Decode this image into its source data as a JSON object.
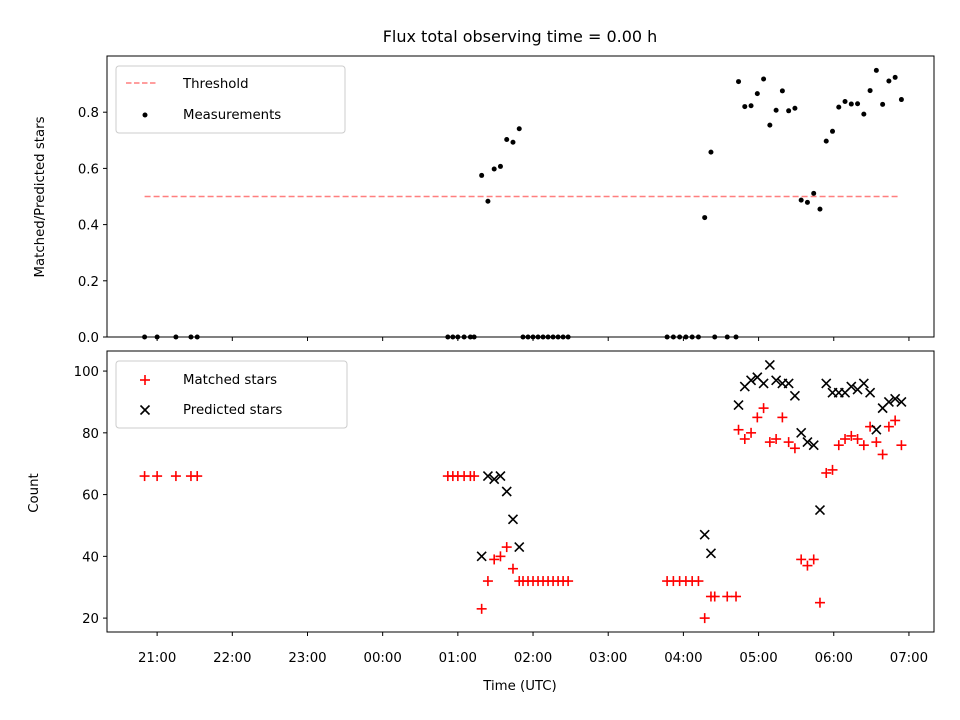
{
  "chart_data": [
    {
      "type": "scatter",
      "title": "Flux total observing time = 0.00 h",
      "xlabel": "",
      "ylabel": "Matched/Predicted stars",
      "xlim": [
        "20:20",
        "07:20"
      ],
      "ylim": [
        0,
        1.0
      ],
      "yticks": [
        "0.0",
        "0.2",
        "0.4",
        "0.6",
        "0.8"
      ],
      "ytick_values": [
        0,
        0.2,
        0.4,
        0.6,
        0.8
      ],
      "grid": false,
      "legend_placement": "top-left",
      "threshold": {
        "name": "Threshold",
        "color": "#ff7f7f",
        "style": "dashed",
        "y": 0.5,
        "x": [
          "20:50",
          "06:52"
        ]
      },
      "series": [
        {
          "name": "Measurements",
          "color": "#000000",
          "marker": "dot",
          "points": [
            [
              "20:50",
              0.0
            ],
            [
              "21:00",
              0.0
            ],
            [
              "21:15",
              0.0
            ],
            [
              "21:27",
              0.0
            ],
            [
              "21:32",
              0.0
            ],
            [
              "00:52",
              0.0
            ],
            [
              "00:56",
              0.0
            ],
            [
              "01:00",
              0.0
            ],
            [
              "01:05",
              0.0
            ],
            [
              "01:10",
              0.0
            ],
            [
              "01:13",
              0.0
            ],
            [
              "01:19",
              0.575
            ],
            [
              "01:24",
              0.483
            ],
            [
              "01:29",
              0.598
            ],
            [
              "01:34",
              0.607
            ],
            [
              "01:39",
              0.703
            ],
            [
              "01:44",
              0.693
            ],
            [
              "01:49",
              0.741
            ],
            [
              "01:52",
              0.0
            ],
            [
              "01:56",
              0.0
            ],
            [
              "02:00",
              0.0
            ],
            [
              "02:04",
              0.0
            ],
            [
              "02:08",
              0.0
            ],
            [
              "02:12",
              0.0
            ],
            [
              "02:16",
              0.0
            ],
            [
              "02:20",
              0.0
            ],
            [
              "02:24",
              0.0
            ],
            [
              "02:28",
              0.0
            ],
            [
              "03:47",
              0.0
            ],
            [
              "03:52",
              0.0
            ],
            [
              "03:57",
              0.0
            ],
            [
              "04:02",
              0.0
            ],
            [
              "04:07",
              0.0
            ],
            [
              "04:12",
              0.0
            ],
            [
              "04:17",
              0.425
            ],
            [
              "04:22",
              0.658
            ],
            [
              "04:25",
              0.0
            ],
            [
              "04:35",
              0.0
            ],
            [
              "04:42",
              0.0
            ],
            [
              "04:44",
              0.909
            ],
            [
              "04:49",
              0.82
            ],
            [
              "04:54",
              0.823
            ],
            [
              "04:59",
              0.866
            ],
            [
              "05:04",
              0.918
            ],
            [
              "05:09",
              0.754
            ],
            [
              "05:14",
              0.807
            ],
            [
              "05:19",
              0.876
            ],
            [
              "05:24",
              0.805
            ],
            [
              "05:29",
              0.814
            ],
            [
              "05:34",
              0.487
            ],
            [
              "05:39",
              0.479
            ],
            [
              "05:44",
              0.511
            ],
            [
              "05:49",
              0.455
            ],
            [
              "05:54",
              0.697
            ],
            [
              "05:59",
              0.732
            ],
            [
              "06:04",
              0.818
            ],
            [
              "06:09",
              0.838
            ],
            [
              "06:14",
              0.829
            ],
            [
              "06:19",
              0.83
            ],
            [
              "06:24",
              0.793
            ],
            [
              "06:29",
              0.877
            ],
            [
              "06:34",
              0.949
            ],
            [
              "06:39",
              0.828
            ],
            [
              "06:44",
              0.911
            ],
            [
              "06:49",
              0.924
            ],
            [
              "06:54",
              0.845
            ]
          ]
        }
      ]
    },
    {
      "type": "scatter",
      "title": "",
      "xlabel": "Time (UTC)",
      "ylabel": "Count",
      "xlim": [
        "20:20",
        "07:20"
      ],
      "xticks": [
        "21:00",
        "22:00",
        "23:00",
        "00:00",
        "01:00",
        "02:00",
        "03:00",
        "04:00",
        "05:00",
        "06:00",
        "07:00"
      ],
      "ylim": [
        15.5,
        106.5
      ],
      "yticks": [
        "20",
        "40",
        "60",
        "80",
        "100"
      ],
      "ytick_values": [
        20,
        40,
        60,
        80,
        100
      ],
      "grid": false,
      "legend_placement": "top-left",
      "series": [
        {
          "name": "Matched stars",
          "color": "#ff0000",
          "marker": "plus",
          "points": [
            [
              "20:50",
              66
            ],
            [
              "21:00",
              66
            ],
            [
              "21:15",
              66
            ],
            [
              "21:27",
              66
            ],
            [
              "21:32",
              66
            ],
            [
              "00:52",
              66
            ],
            [
              "00:56",
              66
            ],
            [
              "01:00",
              66
            ],
            [
              "01:05",
              66
            ],
            [
              "01:10",
              66
            ],
            [
              "01:13",
              66
            ],
            [
              "01:19",
              23
            ],
            [
              "01:24",
              32
            ],
            [
              "01:29",
              39
            ],
            [
              "01:34",
              40
            ],
            [
              "01:39",
              43
            ],
            [
              "01:44",
              36
            ],
            [
              "01:49",
              32
            ],
            [
              "01:52",
              32
            ],
            [
              "01:56",
              32
            ],
            [
              "02:00",
              32
            ],
            [
              "02:04",
              32
            ],
            [
              "02:08",
              32
            ],
            [
              "02:12",
              32
            ],
            [
              "02:16",
              32
            ],
            [
              "02:20",
              32
            ],
            [
              "02:24",
              32
            ],
            [
              "02:28",
              32
            ],
            [
              "03:47",
              32
            ],
            [
              "03:52",
              32
            ],
            [
              "03:57",
              32
            ],
            [
              "04:02",
              32
            ],
            [
              "04:07",
              32
            ],
            [
              "04:12",
              32
            ],
            [
              "04:17",
              20
            ],
            [
              "04:22",
              27
            ],
            [
              "04:25",
              27
            ],
            [
              "04:35",
              27
            ],
            [
              "04:42",
              27
            ],
            [
              "04:44",
              81
            ],
            [
              "04:49",
              78
            ],
            [
              "04:54",
              80
            ],
            [
              "04:59",
              85
            ],
            [
              "05:04",
              88
            ],
            [
              "05:09",
              77
            ],
            [
              "05:14",
              78
            ],
            [
              "05:19",
              85
            ],
            [
              "05:24",
              77
            ],
            [
              "05:29",
              75
            ],
            [
              "05:34",
              39
            ],
            [
              "05:39",
              37
            ],
            [
              "05:44",
              39
            ],
            [
              "05:49",
              25
            ],
            [
              "05:54",
              67
            ],
            [
              "05:59",
              68
            ],
            [
              "06:04",
              76
            ],
            [
              "06:09",
              78
            ],
            [
              "06:14",
              79
            ],
            [
              "06:19",
              78
            ],
            [
              "06:24",
              76
            ],
            [
              "06:29",
              82
            ],
            [
              "06:34",
              77
            ],
            [
              "06:39",
              73
            ],
            [
              "06:44",
              82
            ],
            [
              "06:49",
              84
            ],
            [
              "06:54",
              76
            ]
          ]
        },
        {
          "name": "Predicted stars",
          "color": "#000000",
          "marker": "x",
          "points": [
            [
              "01:19",
              40
            ],
            [
              "01:24",
              66
            ],
            [
              "01:29",
              65
            ],
            [
              "01:34",
              66
            ],
            [
              "01:39",
              61
            ],
            [
              "01:44",
              52
            ],
            [
              "01:49",
              43
            ],
            [
              "04:17",
              47
            ],
            [
              "04:22",
              41
            ],
            [
              "04:44",
              89
            ],
            [
              "04:49",
              95
            ],
            [
              "04:54",
              97
            ],
            [
              "04:59",
              98
            ],
            [
              "05:04",
              96
            ],
            [
              "05:09",
              102
            ],
            [
              "05:14",
              97
            ],
            [
              "05:19",
              96
            ],
            [
              "05:24",
              96
            ],
            [
              "05:29",
              92
            ],
            [
              "05:34",
              80
            ],
            [
              "05:39",
              77
            ],
            [
              "05:44",
              76
            ],
            [
              "05:49",
              55
            ],
            [
              "05:54",
              96
            ],
            [
              "05:59",
              93
            ],
            [
              "06:04",
              93
            ],
            [
              "06:09",
              93
            ],
            [
              "06:14",
              95
            ],
            [
              "06:19",
              94
            ],
            [
              "06:24",
              96
            ],
            [
              "06:29",
              93
            ],
            [
              "06:34",
              81
            ],
            [
              "06:39",
              88
            ],
            [
              "06:44",
              90
            ],
            [
              "06:49",
              91
            ],
            [
              "06:54",
              90
            ]
          ]
        }
      ]
    }
  ]
}
